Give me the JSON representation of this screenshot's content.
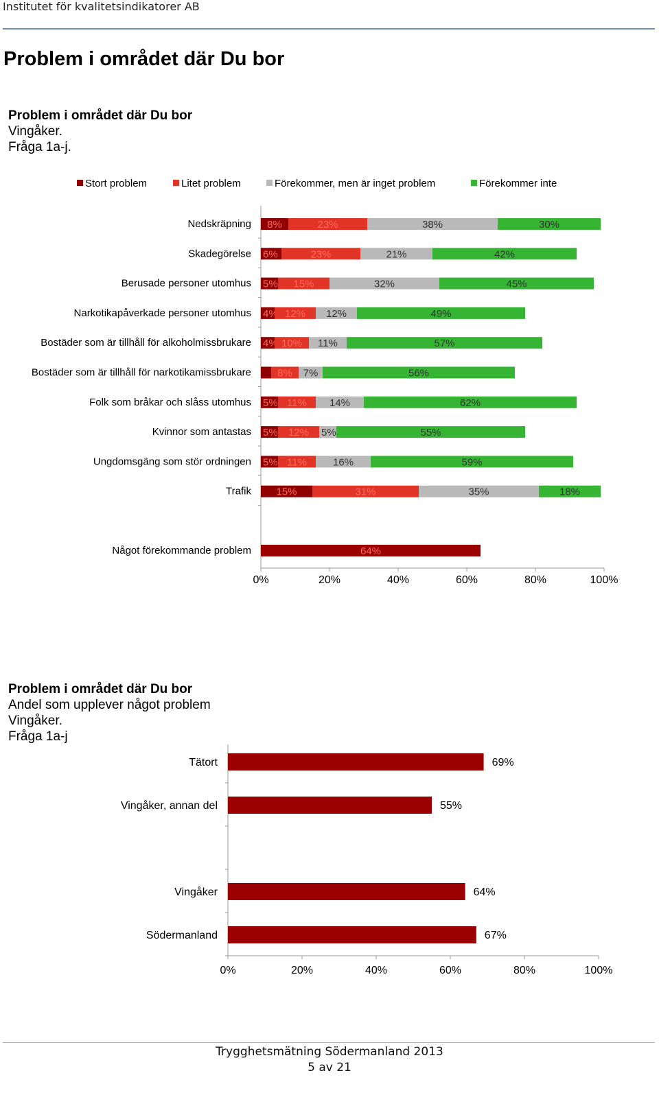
{
  "header": {
    "org": "Institutet för kvalitetsindikatorer AB"
  },
  "page_title": "Problem i området där Du bor",
  "colors": {
    "stort": "#8f0000",
    "litet": "#e23327",
    "forekommer_inget": "#b9b9b9",
    "forekommer_inte": "#35b533",
    "bar2": "#9b0000"
  },
  "chart_data": [
    {
      "type": "bar",
      "stacked": true,
      "orientation": "horizontal",
      "titles": [
        "Problem i området där Du bor",
        "Vingåker.",
        "Fråga 1a-j."
      ],
      "legend_placement": "top",
      "xlim": [
        0,
        100
      ],
      "x_ticks": [
        "0%",
        "20%",
        "40%",
        "60%",
        "80%",
        "100%"
      ],
      "categories": [
        "Nedskräpning",
        "Skadegörelse",
        "Berusade personer utomhus",
        "Narkotikapåverkade personer utomhus",
        "Bostäder som är tillhåll för alkoholmissbrukare",
        "Bostäder som är tillhåll för narkotikamissbrukare",
        "Folk som bråkar och slåss utomhus",
        "Kvinnor som antastas",
        "Ungdomsgäng som stör ordningen",
        "Trafik"
      ],
      "series": [
        {
          "name": "Stort problem",
          "values": [
            8,
            6,
            5,
            4,
            4,
            3,
            5,
            5,
            5,
            15
          ],
          "labels": [
            "8%",
            "6%",
            "5%",
            "4%",
            "4%",
            "",
            "5%",
            "5%",
            "5%",
            "15%"
          ]
        },
        {
          "name": "Litet problem",
          "values": [
            23,
            23,
            15,
            12,
            10,
            8,
            11,
            12,
            11,
            31
          ],
          "labels": [
            "23%",
            "23%",
            "15%",
            "12%",
            "10%",
            "8%",
            "11%",
            "12%",
            "11%",
            "31%"
          ]
        },
        {
          "name": "Förekommer, men är inget problem",
          "values": [
            38,
            21,
            32,
            12,
            11,
            7,
            14,
            5,
            16,
            35
          ],
          "labels": [
            "38%",
            "21%",
            "32%",
            "12%",
            "11%",
            "7%",
            "14%",
            "5%",
            "16%",
            "35%"
          ]
        },
        {
          "name": "Förekommer inte",
          "values": [
            30,
            42,
            45,
            49,
            57,
            56,
            62,
            55,
            59,
            18
          ],
          "labels": [
            "30%",
            "42%",
            "45%",
            "49%",
            "57%",
            "56%",
            "62%",
            "55%",
            "59%",
            "18%"
          ]
        }
      ],
      "extra_bar": {
        "category": "Något förekommande problem",
        "value": 64,
        "label": "64%"
      }
    },
    {
      "type": "bar",
      "orientation": "horizontal",
      "titles": [
        "Problem i området där Du bor",
        "Andel som upplever något problem",
        "Vingåker.",
        "Fråga 1a-j"
      ],
      "xlim": [
        0,
        100
      ],
      "x_ticks": [
        "0%",
        "20%",
        "40%",
        "60%",
        "80%",
        "100%"
      ],
      "categories": [
        "Tätort",
        "Vingåker, annan del",
        "",
        "Vingåker",
        "Södermanland"
      ],
      "values": [
        69,
        55,
        null,
        64,
        67
      ],
      "labels": [
        "69%",
        "55%",
        "",
        "64%",
        "67%"
      ]
    }
  ],
  "footer": {
    "line1": "Trygghetsmätning Södermanland 2013",
    "line2": "5 av 21"
  }
}
